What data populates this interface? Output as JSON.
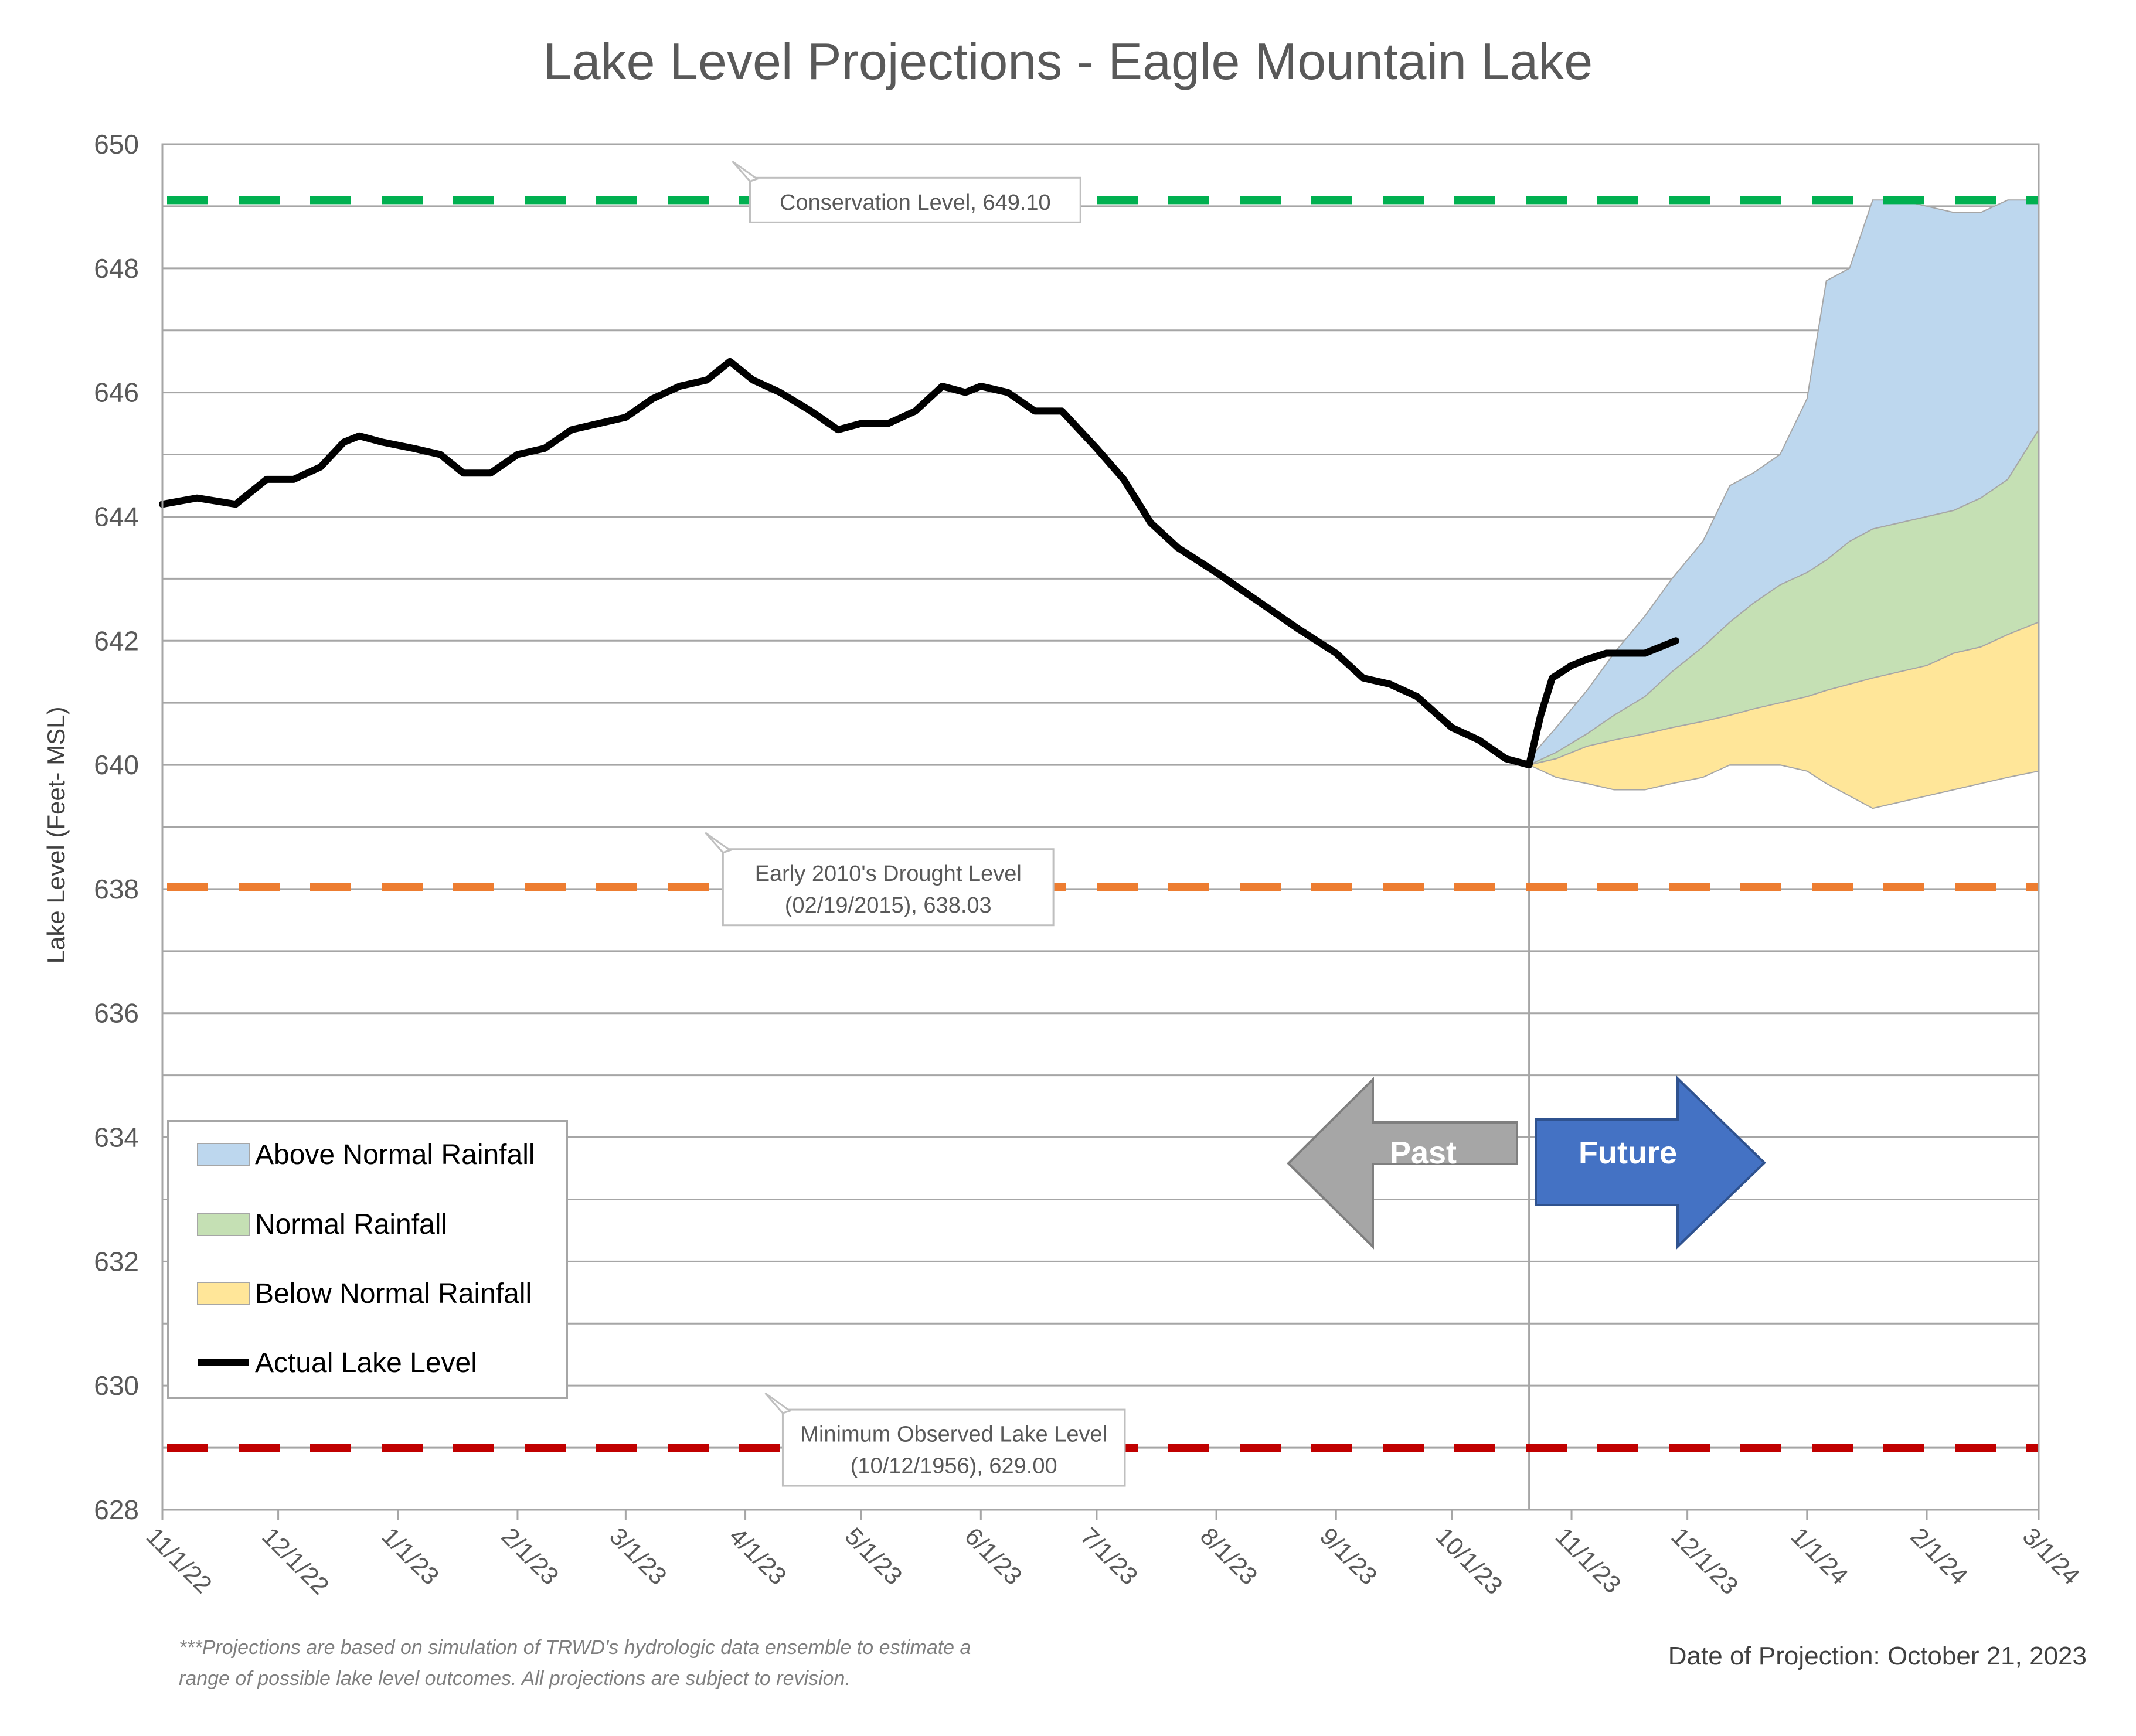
{
  "chart_data": {
    "type": "area",
    "title": "Lake Level Projections - Eagle Mountain Lake",
    "ylabel": "Lake Level (Feet- MSL)",
    "xlabel": "",
    "ylim": [
      628,
      650
    ],
    "yticks": [
      628,
      630,
      632,
      634,
      636,
      638,
      640,
      642,
      644,
      646,
      648,
      650
    ],
    "xlim": [
      "2022-11-01",
      "2024-03-01"
    ],
    "xticks": [
      {
        "date": "2022-11-01",
        "label": "11/1/22"
      },
      {
        "date": "2022-12-01",
        "label": "12/1/22"
      },
      {
        "date": "2023-01-01",
        "label": "1/1/23"
      },
      {
        "date": "2023-02-01",
        "label": "2/1/23"
      },
      {
        "date": "2023-03-01",
        "label": "3/1/23"
      },
      {
        "date": "2023-04-01",
        "label": "4/1/23"
      },
      {
        "date": "2023-05-01",
        "label": "5/1/23"
      },
      {
        "date": "2023-06-01",
        "label": "6/1/23"
      },
      {
        "date": "2023-07-01",
        "label": "7/1/23"
      },
      {
        "date": "2023-08-01",
        "label": "8/1/23"
      },
      {
        "date": "2023-09-01",
        "label": "9/1/23"
      },
      {
        "date": "2023-10-01",
        "label": "10/1/23"
      },
      {
        "date": "2023-11-01",
        "label": "11/1/23"
      },
      {
        "date": "2023-12-01",
        "label": "12/1/23"
      },
      {
        "date": "2024-01-01",
        "label": "1/1/24"
      },
      {
        "date": "2024-02-01",
        "label": "2/1/24"
      },
      {
        "date": "2024-03-01",
        "label": "3/1/24"
      }
    ],
    "grid": true,
    "legend_position": "bottom-left",
    "reference_lines": [
      {
        "name": "conservation",
        "value": 649.1,
        "color": "#00B050",
        "label_lines": [
          "Conservation Level, 649.10"
        ],
        "label_date": "2023-05-15"
      },
      {
        "name": "drought",
        "value": 638.03,
        "color": "#ED7D31",
        "label_lines": [
          "Early 2010's Drought Level",
          "(02/19/2015), 638.03"
        ],
        "label_date": "2023-05-08"
      },
      {
        "name": "minimum",
        "value": 629.0,
        "color": "#C00000",
        "label_lines": [
          "Minimum Observed Lake Level",
          "(10/12/1956), 629.00"
        ],
        "label_date": "2023-05-25"
      }
    ],
    "projection_date": "2023-10-21",
    "series": [
      {
        "name": "Above Normal Rainfall",
        "kind": "band",
        "color": "#BDD7EE",
        "x": [
          "2023-10-21",
          "2023-10-28",
          "2023-11-05",
          "2023-11-12",
          "2023-11-20",
          "2023-11-27",
          "2023-12-05",
          "2023-12-12",
          "2023-12-18",
          "2023-12-25",
          "2024-01-01",
          "2024-01-06",
          "2024-01-12",
          "2024-01-18",
          "2024-01-25",
          "2024-02-01",
          "2024-02-08",
          "2024-02-15",
          "2024-02-22",
          "2024-03-01"
        ],
        "upper": [
          640.1,
          640.6,
          641.2,
          641.8,
          642.4,
          643.0,
          643.6,
          644.5,
          644.7,
          645.0,
          645.9,
          647.8,
          648.0,
          649.1,
          649.1,
          649.0,
          648.9,
          648.9,
          649.1,
          649.1
        ],
        "lower": [
          640.0,
          640.2,
          640.5,
          640.8,
          641.1,
          641.5,
          641.9,
          642.3,
          642.6,
          642.9,
          643.1,
          643.3,
          643.6,
          643.8,
          643.9,
          644.0,
          644.1,
          644.3,
          644.6,
          645.4
        ]
      },
      {
        "name": "Normal Rainfall",
        "kind": "band",
        "color": "#C5E0B4",
        "x": [
          "2023-10-21",
          "2023-10-28",
          "2023-11-05",
          "2023-11-12",
          "2023-11-20",
          "2023-11-27",
          "2023-12-05",
          "2023-12-12",
          "2023-12-18",
          "2023-12-25",
          "2024-01-01",
          "2024-01-06",
          "2024-01-12",
          "2024-01-18",
          "2024-01-25",
          "2024-02-01",
          "2024-02-08",
          "2024-02-15",
          "2024-02-22",
          "2024-03-01"
        ],
        "upper": [
          640.0,
          640.2,
          640.5,
          640.8,
          641.1,
          641.5,
          641.9,
          642.3,
          642.6,
          642.9,
          643.1,
          643.3,
          643.6,
          643.8,
          643.9,
          644.0,
          644.1,
          644.3,
          644.6,
          645.4
        ],
        "lower": [
          640.0,
          640.1,
          640.3,
          640.4,
          640.5,
          640.6,
          640.7,
          640.8,
          640.9,
          641.0,
          641.1,
          641.2,
          641.3,
          641.4,
          641.5,
          641.6,
          641.8,
          641.9,
          642.1,
          642.3
        ]
      },
      {
        "name": "Below Normal Rainfall",
        "kind": "band",
        "color": "#FFE699",
        "x": [
          "2023-10-21",
          "2023-10-28",
          "2023-11-05",
          "2023-11-12",
          "2023-11-20",
          "2023-11-27",
          "2023-12-05",
          "2023-12-12",
          "2023-12-18",
          "2023-12-25",
          "2024-01-01",
          "2024-01-06",
          "2024-01-12",
          "2024-01-18",
          "2024-01-25",
          "2024-02-01",
          "2024-02-08",
          "2024-02-15",
          "2024-02-22",
          "2024-03-01"
        ],
        "upper": [
          640.0,
          640.1,
          640.3,
          640.4,
          640.5,
          640.6,
          640.7,
          640.8,
          640.9,
          641.0,
          641.1,
          641.2,
          641.3,
          641.4,
          641.5,
          641.6,
          641.8,
          641.9,
          642.1,
          642.3
        ],
        "lower": [
          640.0,
          639.8,
          639.7,
          639.6,
          639.6,
          639.7,
          639.8,
          640.0,
          640.0,
          640.0,
          639.9,
          639.7,
          639.5,
          639.3,
          639.4,
          639.5,
          639.6,
          639.7,
          639.8,
          639.9
        ]
      },
      {
        "name": "Actual Lake Level",
        "kind": "line",
        "color": "#000000",
        "x": [
          "2022-11-01",
          "2022-11-10",
          "2022-11-20",
          "2022-11-28",
          "2022-12-05",
          "2022-12-12",
          "2022-12-18",
          "2022-12-22",
          "2022-12-28",
          "2023-01-05",
          "2023-01-12",
          "2023-01-18",
          "2023-01-25",
          "2023-02-01",
          "2023-02-08",
          "2023-02-15",
          "2023-02-22",
          "2023-03-01",
          "2023-03-08",
          "2023-03-15",
          "2023-03-22",
          "2023-03-28",
          "2023-04-03",
          "2023-04-10",
          "2023-04-18",
          "2023-04-25",
          "2023-05-01",
          "2023-05-08",
          "2023-05-15",
          "2023-05-22",
          "2023-05-28",
          "2023-06-01",
          "2023-06-08",
          "2023-06-15",
          "2023-06-22",
          "2023-07-01",
          "2023-07-08",
          "2023-07-15",
          "2023-07-22",
          "2023-08-01",
          "2023-08-08",
          "2023-08-15",
          "2023-08-22",
          "2023-09-01",
          "2023-09-08",
          "2023-09-15",
          "2023-09-22",
          "2023-10-01",
          "2023-10-08",
          "2023-10-15",
          "2023-10-21",
          "2023-10-24",
          "2023-10-27",
          "2023-11-01",
          "2023-11-05",
          "2023-11-10",
          "2023-11-15",
          "2023-11-20",
          "2023-11-24",
          "2023-11-28"
        ],
        "y": [
          644.2,
          644.3,
          644.2,
          644.6,
          644.6,
          644.8,
          645.2,
          645.3,
          645.2,
          645.1,
          645.0,
          644.7,
          644.7,
          645.0,
          645.1,
          645.4,
          645.5,
          645.6,
          645.9,
          646.1,
          646.2,
          646.5,
          646.2,
          646.0,
          645.7,
          645.4,
          645.5,
          645.5,
          645.7,
          646.1,
          646.0,
          646.1,
          646.0,
          645.7,
          645.7,
          645.1,
          644.6,
          643.9,
          643.5,
          643.1,
          642.8,
          642.5,
          642.2,
          641.8,
          641.4,
          641.3,
          641.1,
          640.6,
          640.4,
          640.1,
          640.0,
          640.8,
          641.4,
          641.6,
          641.7,
          641.8,
          641.8,
          641.8,
          641.9,
          642.0
        ]
      }
    ],
    "annotations": {
      "past_arrow": "Past",
      "future_arrow": "Future",
      "footnote_line1": "***Projections are based on simulation of TRWD's hydrologic data ensemble to estimate a",
      "footnote_line2": "range of possible lake level outcomes.  All projections are subject to revision.",
      "projection_date_label": "Date of Projection: October 21, 2023"
    }
  }
}
